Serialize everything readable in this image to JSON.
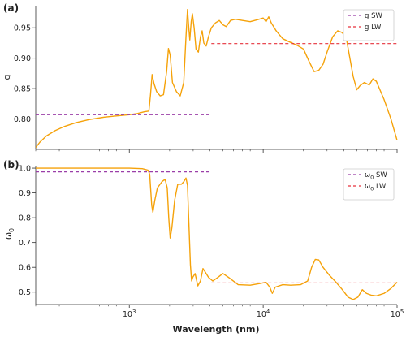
{
  "chart_data": [
    {
      "type": "line",
      "panel_label": "(a)",
      "ylabel": "g",
      "xscale": "log",
      "xlim": [
        200,
        100000
      ],
      "ylim": [
        0.75,
        0.985
      ],
      "yticks": [
        0.8,
        0.85,
        0.9,
        0.95
      ],
      "ytick_labels": [
        "0.80",
        "0.85",
        "0.90",
        "0.95"
      ],
      "legend_position": "top-right",
      "series": [
        {
          "color": "#f5a20a",
          "style": "solid",
          "points": [
            [
              200,
              0.753
            ],
            [
              215,
              0.762
            ],
            [
              240,
              0.772
            ],
            [
              280,
              0.781
            ],
            [
              330,
              0.788
            ],
            [
              400,
              0.794
            ],
            [
              500,
              0.799
            ],
            [
              650,
              0.803
            ],
            [
              800,
              0.805
            ],
            [
              1000,
              0.807
            ],
            [
              1150,
              0.809
            ],
            [
              1300,
              0.812
            ],
            [
              1400,
              0.813
            ],
            [
              1440,
              0.84
            ],
            [
              1480,
              0.873
            ],
            [
              1530,
              0.858
            ],
            [
              1600,
              0.845
            ],
            [
              1700,
              0.838
            ],
            [
              1800,
              0.84
            ],
            [
              1900,
              0.878
            ],
            [
              1960,
              0.916
            ],
            [
              2020,
              0.905
            ],
            [
              2100,
              0.86
            ],
            [
              2250,
              0.845
            ],
            [
              2400,
              0.838
            ],
            [
              2550,
              0.86
            ],
            [
              2650,
              0.935
            ],
            [
              2720,
              0.98
            ],
            [
              2770,
              0.955
            ],
            [
              2830,
              0.93
            ],
            [
              2900,
              0.96
            ],
            [
              2960,
              0.973
            ],
            [
              3050,
              0.95
            ],
            [
              3150,
              0.915
            ],
            [
              3280,
              0.91
            ],
            [
              3400,
              0.935
            ],
            [
              3500,
              0.945
            ],
            [
              3600,
              0.925
            ],
            [
              3750,
              0.92
            ],
            [
              3900,
              0.935
            ],
            [
              4100,
              0.95
            ],
            [
              4400,
              0.958
            ],
            [
              4700,
              0.962
            ],
            [
              5000,
              0.955
            ],
            [
              5300,
              0.952
            ],
            [
              5700,
              0.962
            ],
            [
              6200,
              0.964
            ],
            [
              7000,
              0.962
            ],
            [
              8000,
              0.96
            ],
            [
              9000,
              0.963
            ],
            [
              10000,
              0.966
            ],
            [
              10500,
              0.96
            ],
            [
              11000,
              0.968
            ],
            [
              11500,
              0.958
            ],
            [
              12500,
              0.945
            ],
            [
              14000,
              0.932
            ],
            [
              16000,
              0.926
            ],
            [
              18000,
              0.921
            ],
            [
              20000,
              0.915
            ],
            [
              22000,
              0.895
            ],
            [
              24000,
              0.878
            ],
            [
              26000,
              0.88
            ],
            [
              28000,
              0.89
            ],
            [
              30000,
              0.91
            ],
            [
              33000,
              0.935
            ],
            [
              36000,
              0.945
            ],
            [
              39000,
              0.942
            ],
            [
              42000,
              0.93
            ],
            [
              44000,
              0.905
            ],
            [
              47000,
              0.87
            ],
            [
              50000,
              0.848
            ],
            [
              53000,
              0.855
            ],
            [
              57000,
              0.86
            ],
            [
              62000,
              0.856
            ],
            [
              66000,
              0.866
            ],
            [
              70000,
              0.862
            ],
            [
              80000,
              0.832
            ],
            [
              90000,
              0.8
            ],
            [
              100000,
              0.765
            ]
          ]
        },
        {
          "name": "g SW",
          "color": "#9b3ea8",
          "style": "dashed",
          "points": [
            [
              200,
              0.807
            ],
            [
              4100,
              0.807
            ]
          ]
        },
        {
          "name": "g LW",
          "color": "#e6323c",
          "style": "dashed",
          "points": [
            [
              4100,
              0.924
            ],
            [
              100000,
              0.924
            ]
          ]
        }
      ]
    },
    {
      "type": "line",
      "panel_label": "(b)",
      "ylabel_base": "ω",
      "ylabel_sub": "0",
      "xlabel": "Wavelength (nm)",
      "xscale": "log",
      "xlim": [
        200,
        100000
      ],
      "ylim": [
        0.45,
        1.01
      ],
      "yticks": [
        0.5,
        0.6,
        0.7,
        0.8,
        0.9,
        1.0
      ],
      "ytick_labels": [
        "0.5",
        "0.6",
        "0.7",
        "0.8",
        "0.9",
        "1.0"
      ],
      "xticks": [
        1000,
        10000,
        100000
      ],
      "xtick_base": "10",
      "xtick_exps": [
        "3",
        "4",
        "5"
      ],
      "legend_position": "top-right",
      "series": [
        {
          "color": "#f5a20a",
          "style": "solid",
          "points": [
            [
              200,
              1.0
            ],
            [
              500,
              1.0
            ],
            [
              1000,
              1.0
            ],
            [
              1250,
              0.998
            ],
            [
              1380,
              0.992
            ],
            [
              1420,
              0.975
            ],
            [
              1470,
              0.85
            ],
            [
              1500,
              0.822
            ],
            [
              1550,
              0.87
            ],
            [
              1620,
              0.92
            ],
            [
              1750,
              0.945
            ],
            [
              1850,
              0.955
            ],
            [
              1920,
              0.92
            ],
            [
              1970,
              0.8
            ],
            [
              2020,
              0.718
            ],
            [
              2080,
              0.76
            ],
            [
              2180,
              0.87
            ],
            [
              2300,
              0.935
            ],
            [
              2450,
              0.935
            ],
            [
              2550,
              0.945
            ],
            [
              2650,
              0.96
            ],
            [
              2720,
              0.93
            ],
            [
              2780,
              0.79
            ],
            [
              2860,
              0.61
            ],
            [
              2920,
              0.545
            ],
            [
              2980,
              0.56
            ],
            [
              3100,
              0.575
            ],
            [
              3250,
              0.525
            ],
            [
              3400,
              0.545
            ],
            [
              3550,
              0.595
            ],
            [
              3700,
              0.58
            ],
            [
              3900,
              0.56
            ],
            [
              4200,
              0.545
            ],
            [
              4600,
              0.56
            ],
            [
              5000,
              0.575
            ],
            [
              5500,
              0.56
            ],
            [
              6500,
              0.53
            ],
            [
              8000,
              0.528
            ],
            [
              9500,
              0.535
            ],
            [
              10500,
              0.54
            ],
            [
              11200,
              0.52
            ],
            [
              11700,
              0.495
            ],
            [
              12300,
              0.52
            ],
            [
              14000,
              0.53
            ],
            [
              16000,
              0.528
            ],
            [
              19000,
              0.53
            ],
            [
              21500,
              0.545
            ],
            [
              23000,
              0.6
            ],
            [
              24500,
              0.632
            ],
            [
              26000,
              0.63
            ],
            [
              28000,
              0.6
            ],
            [
              31000,
              0.57
            ],
            [
              35000,
              0.54
            ],
            [
              39000,
              0.51
            ],
            [
              43000,
              0.48
            ],
            [
              47000,
              0.47
            ],
            [
              51000,
              0.48
            ],
            [
              55000,
              0.51
            ],
            [
              59000,
              0.495
            ],
            [
              64000,
              0.488
            ],
            [
              70000,
              0.485
            ],
            [
              80000,
              0.495
            ],
            [
              90000,
              0.515
            ],
            [
              100000,
              0.54
            ]
          ]
        },
        {
          "name_base": "ω",
          "name_sub": "0",
          "name_suffix": " SW",
          "color": "#9b3ea8",
          "style": "dashed",
          "points": [
            [
              200,
              0.985
            ],
            [
              4100,
              0.985
            ]
          ]
        },
        {
          "name_base": "ω",
          "name_sub": "0",
          "name_suffix": " LW",
          "color": "#e6323c",
          "style": "dashed",
          "points": [
            [
              4100,
              0.537
            ],
            [
              100000,
              0.537
            ]
          ]
        }
      ]
    }
  ]
}
